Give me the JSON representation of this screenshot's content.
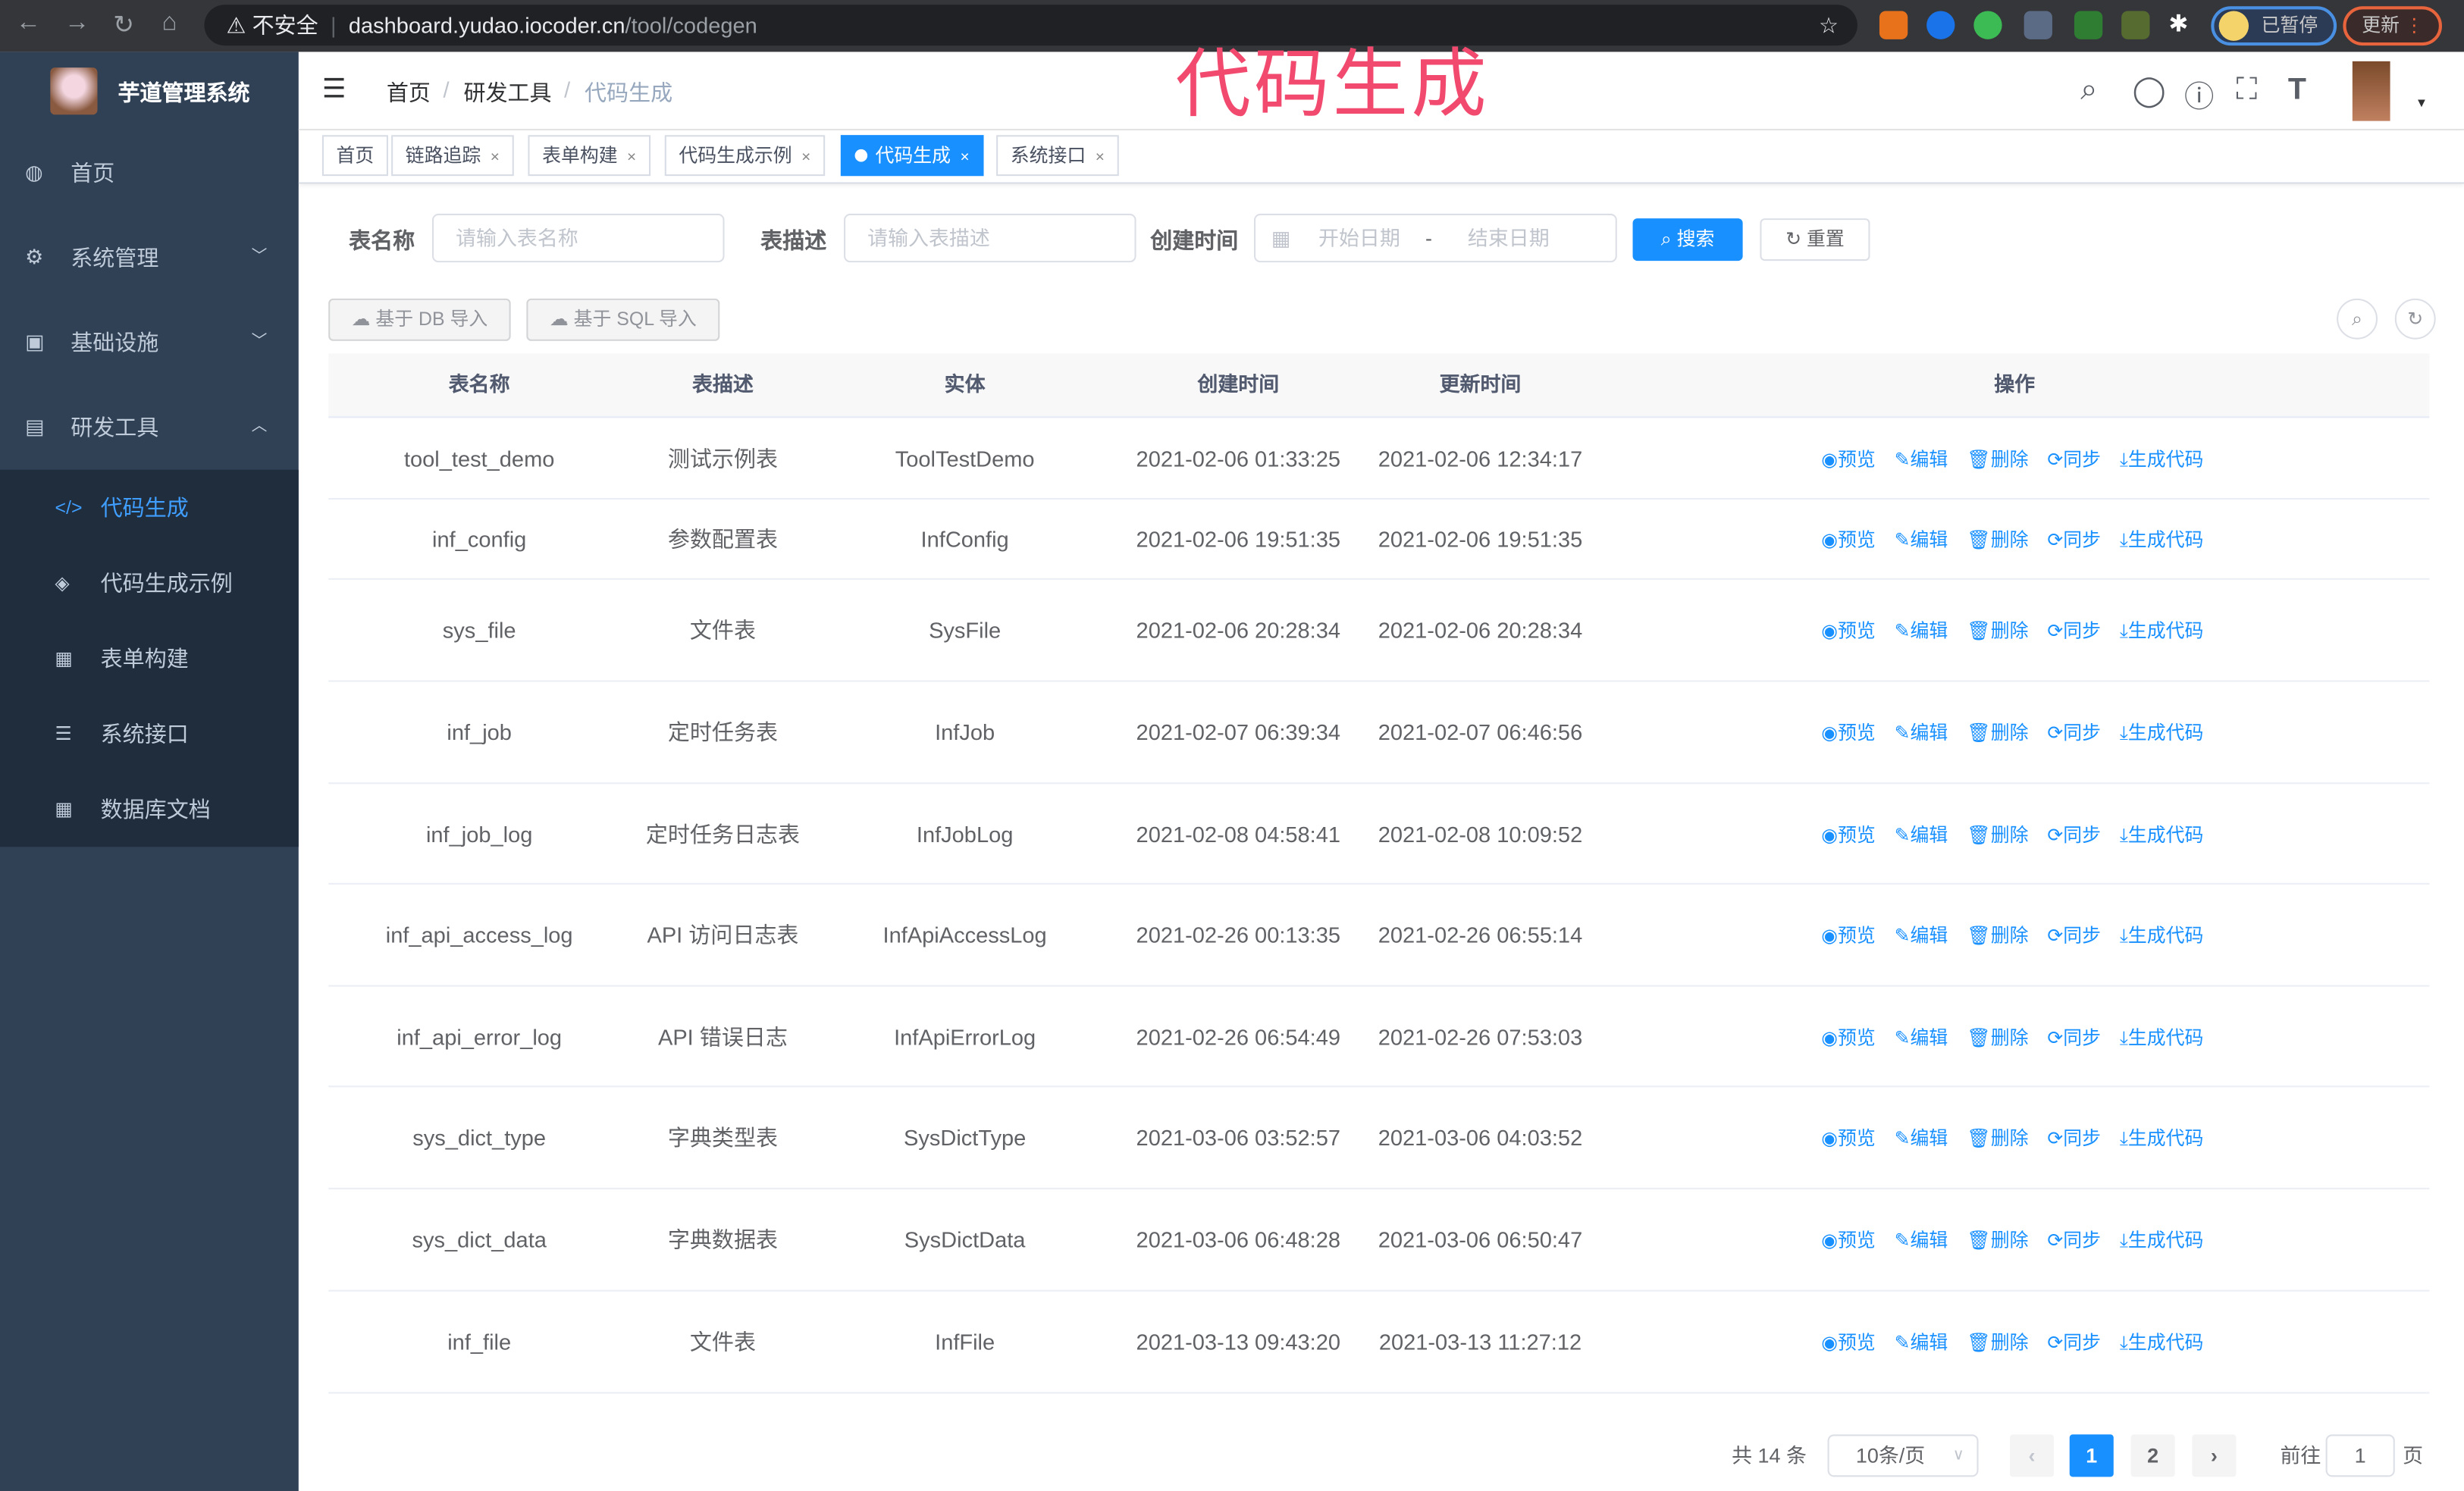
{
  "browser": {
    "security": "不安全",
    "url_host": "dashboard.yudao.iocoder.cn",
    "url_path": "/tool/codegen",
    "profile_label": "已暂停",
    "update_label": "更新"
  },
  "overlay_title": "代码生成",
  "sidebar": {
    "title": "芋道管理系统",
    "items": [
      {
        "label": "首页",
        "icon": "dashboard-icon"
      },
      {
        "label": "系统管理",
        "icon": "gear-icon"
      },
      {
        "label": "基础设施",
        "icon": "monitor-icon"
      },
      {
        "label": "研发工具",
        "icon": "toolbox-icon"
      }
    ],
    "subitems": [
      {
        "label": "代码生成",
        "icon": "code-icon",
        "active": true
      },
      {
        "label": "代码生成示例",
        "icon": "shield-icon"
      },
      {
        "label": "表单构建",
        "icon": "form-icon"
      },
      {
        "label": "系统接口",
        "icon": "sliders-icon"
      },
      {
        "label": "数据库文档",
        "icon": "table-icon"
      }
    ]
  },
  "breadcrumb": [
    "首页",
    "研发工具",
    "代码生成"
  ],
  "tags": [
    {
      "label": "首页"
    },
    {
      "label": "链路追踪"
    },
    {
      "label": "表单构建"
    },
    {
      "label": "代码生成示例"
    },
    {
      "label": "代码生成",
      "active": true
    },
    {
      "label": "系统接口"
    }
  ],
  "search": {
    "table_name_label": "表名称",
    "table_name_placeholder": "请输入表名称",
    "table_desc_label": "表描述",
    "table_desc_placeholder": "请输入表描述",
    "create_time_label": "创建时间",
    "start_placeholder": "开始日期",
    "separator": "-",
    "end_placeholder": "结束日期",
    "search_btn": "搜索",
    "reset_btn": "重置"
  },
  "toolbar": {
    "import_db": "基于 DB 导入",
    "import_sql": "基于 SQL 导入"
  },
  "table": {
    "headers": [
      "表名称",
      "表描述",
      "实体",
      "创建时间",
      "更新时间",
      "操作"
    ],
    "ops": [
      "预览",
      "编辑",
      "删除",
      "同步",
      "生成代码"
    ],
    "rows": [
      [
        "tool_test_demo",
        "测试示例表",
        "ToolTestDemo",
        "2021-02-06 01:33:25",
        "2021-02-06 12:34:17"
      ],
      [
        "inf_config",
        "参数配置表",
        "InfConfig",
        "2021-02-06 19:51:35",
        "2021-02-06 19:51:35"
      ],
      [
        "sys_file",
        "文件表",
        "SysFile",
        "2021-02-06 20:28:34",
        "2021-02-06 20:28:34"
      ],
      [
        "inf_job",
        "定时任务表",
        "InfJob",
        "2021-02-07 06:39:34",
        "2021-02-07 06:46:56"
      ],
      [
        "inf_job_log",
        "定时任务日志表",
        "InfJobLog",
        "2021-02-08 04:58:41",
        "2021-02-08 10:09:52"
      ],
      [
        "inf_api_access_log",
        "API 访问日志表",
        "InfApiAccessLog",
        "2021-02-26 00:13:35",
        "2021-02-26 06:55:14"
      ],
      [
        "inf_api_error_log",
        "API 错误日志",
        "InfApiErrorLog",
        "2021-02-26 06:54:49",
        "2021-02-26 07:53:03"
      ],
      [
        "sys_dict_type",
        "字典类型表",
        "SysDictType",
        "2021-03-06 03:52:57",
        "2021-03-06 04:03:52"
      ],
      [
        "sys_dict_data",
        "字典数据表",
        "SysDictData",
        "2021-03-06 06:48:28",
        "2021-03-06 06:50:47"
      ],
      [
        "inf_file",
        "文件表",
        "InfFile",
        "2021-03-13 09:43:20",
        "2021-03-13 11:27:12"
      ]
    ]
  },
  "pagination": {
    "total": "共 14 条",
    "page_size": "10条/页",
    "pages": [
      "1",
      "2"
    ],
    "current": "1",
    "goto_label": "前往",
    "goto_value": "1",
    "page_suffix": "页"
  },
  "colors": {
    "accent": "#1890ff",
    "sidebar": "#304156",
    "submenu": "#1f2d3d",
    "overlay": "#f24a6f"
  }
}
